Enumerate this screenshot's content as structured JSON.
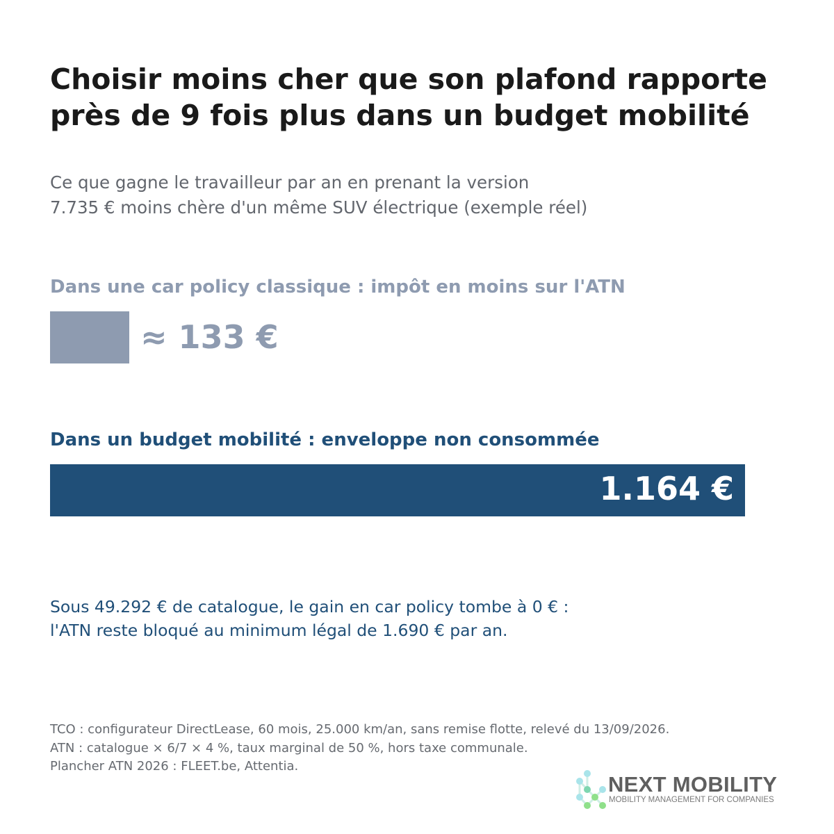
{
  "title_lines": [
    "Choisir moins cher que son plafond rapporte",
    "près de 9 fois plus dans un budget mobilité"
  ],
  "subtitle_lines": [
    "Ce que gagne le travailleur par an en prenant la version",
    "7.735 € moins chère d'un même SUV électrique (exemple réel)"
  ],
  "chart_data": {
    "type": "bar",
    "orientation": "horizontal",
    "title": "Choisir moins cher que son plafond rapporte près de 9 fois plus dans un budget mobilité",
    "xlim": [
      0,
      1164
    ],
    "grid": false,
    "categories": [
      "Dans une car policy classique : impôt en moins sur l'ATN",
      "Dans un budget mobilité : enveloppe non consommée"
    ],
    "values": [
      133,
      1164
    ],
    "value_labels": [
      "≈ 133 €",
      "1.164 €"
    ],
    "colors": [
      "#8e9bb0",
      "#204f78"
    ],
    "label_placement": [
      "outside",
      "inside"
    ]
  },
  "note_lines": [
    "Sous 49.292 € de catalogue, le gain en car policy tombe à 0 € :",
    "l'ATN reste bloqué au minimum légal de 1.690 € par an."
  ],
  "note_color": "#204f78",
  "source_lines": [
    "TCO : configurateur DirectLease, 60 mois, 25.000 km/an, sans remise flotte, relevé du 13/09/2026.",
    "ATN : catalogue × 6/7 × 4 %, taux marginal de 50 %, hors taxe communale.",
    "Plancher ATN 2026 : FLEET.be, Attentia."
  ],
  "logo": {
    "name": "NEXT MOBILITY",
    "tagline": "MOBILITY MANAGEMENT FOR COMPANIES",
    "mark_colors": [
      "#a9e4ea",
      "#7ed6b0",
      "#8fe08a"
    ]
  }
}
